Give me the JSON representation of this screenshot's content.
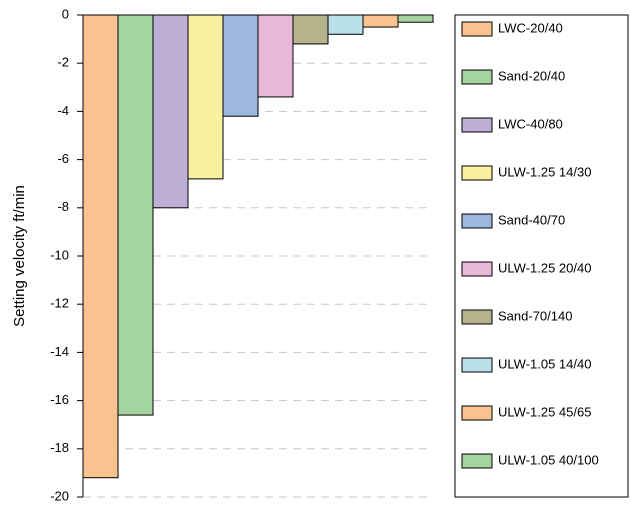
{
  "chart_data": {
    "type": "bar",
    "ylabel": "Setting velocity ft/min",
    "ylim": [
      -20,
      0
    ],
    "yticks": [
      0,
      -2,
      -4,
      -6,
      -8,
      -10,
      -12,
      -14,
      -16,
      -18,
      -20
    ],
    "grid": true,
    "legend": "right",
    "series": [
      {
        "name": "LWC-20/40",
        "color": "#f9c38f",
        "values": [
          -19.2
        ]
      },
      {
        "name": "Sand-20/40",
        "color": "#a4d5a0",
        "values": [
          -16.6
        ]
      },
      {
        "name": "LWC-40/80",
        "color": "#bfaed6",
        "values": [
          -8.0
        ]
      },
      {
        "name": "ULW-1.25 14/30",
        "color": "#f8f1a0",
        "values": [
          -6.8
        ]
      },
      {
        "name": "Sand-40/70",
        "color": "#9db8df",
        "values": [
          -4.2
        ]
      },
      {
        "name": "ULW-1.25 20/40",
        "color": "#e9b8d8",
        "values": [
          -3.4
        ]
      },
      {
        "name": "Sand-70/140",
        "color": "#b5b38c",
        "values": [
          -1.2
        ]
      },
      {
        "name": "ULW-1.05 14/40",
        "color": "#b8e1e8",
        "values": [
          -0.8
        ]
      },
      {
        "name": "ULW-1.25 45/65",
        "color": "#f9c38f",
        "values": [
          -0.5
        ]
      },
      {
        "name": "ULW-1.05 40/100",
        "color": "#a4d5a0",
        "values": [
          -0.3
        ]
      }
    ]
  }
}
